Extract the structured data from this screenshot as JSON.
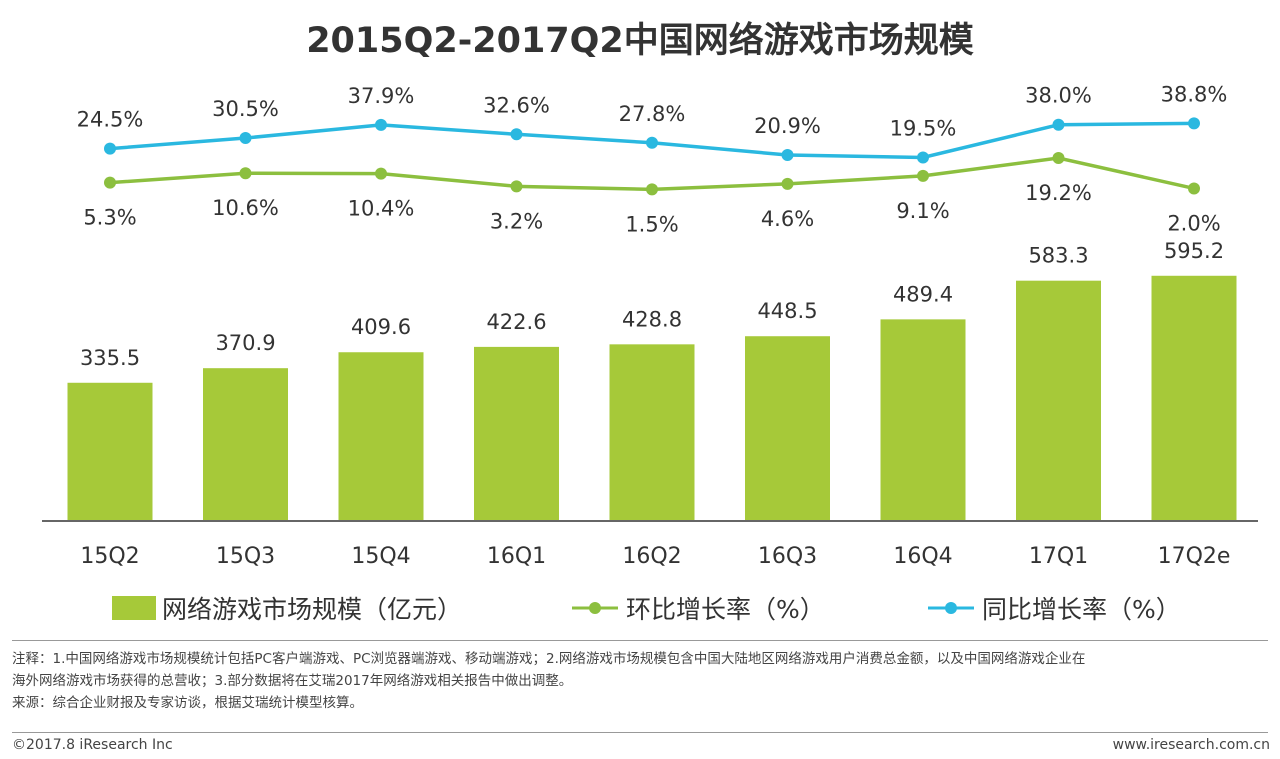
{
  "colors": {
    "bar": "#a6c939",
    "qoq_line": "#8cbf3f",
    "yoy_line": "#2ab8e0",
    "axis": "#666666",
    "text": "#333333"
  },
  "chart_data": {
    "type": "bar",
    "title": "2015Q2-2017Q2中国网络游戏市场规模",
    "categories": [
      "15Q2",
      "15Q3",
      "15Q4",
      "16Q1",
      "16Q2",
      "16Q3",
      "16Q4",
      "17Q1",
      "17Q2e"
    ],
    "series": [
      {
        "name": "网络游戏市场规模（亿元）",
        "kind": "bar",
        "values": [
          335.5,
          370.9,
          409.6,
          422.6,
          428.8,
          448.5,
          489.4,
          583.3,
          595.2
        ],
        "labels": [
          "335.5",
          "370.9",
          "409.6",
          "422.6",
          "428.8",
          "448.5",
          "489.4",
          "583.3",
          "595.2"
        ]
      },
      {
        "name": "环比增长率（%）",
        "kind": "line",
        "values": [
          5.3,
          10.6,
          10.4,
          3.2,
          1.5,
          4.6,
          9.1,
          19.2,
          2.0
        ],
        "labels": [
          "5.3%",
          "10.6%",
          "10.4%",
          "3.2%",
          "1.5%",
          "4.6%",
          "9.1%",
          "19.2%",
          "2.0%"
        ]
      },
      {
        "name": "同比增长率（%）",
        "kind": "line",
        "values": [
          24.5,
          30.5,
          37.9,
          32.6,
          27.8,
          20.9,
          19.5,
          38.0,
          38.8
        ],
        "labels": [
          "24.5%",
          "30.5%",
          "37.9%",
          "32.6%",
          "27.8%",
          "20.9%",
          "19.5%",
          "38.0%",
          "38.8%"
        ]
      }
    ],
    "bar_ylim": [
      0,
      600
    ],
    "legend_position": "bottom"
  },
  "legend": {
    "bar": "网络游戏市场规模（亿元）",
    "qoq": "环比增长率（%）",
    "yoy": "同比增长率（%）"
  },
  "notes": {
    "line1": "注释：1.中国网络游戏市场规模统计包括PC客户端游戏、PC浏览器端游戏、移动端游戏；2.网络游戏市场规模包含中国大陆地区网络游戏用户消费总金额，以及中国网络游戏企业在",
    "line2": "海外网络游戏市场获得的总营收；3.部分数据将在艾瑞2017年网络游戏相关报告中做出调整。",
    "source": "来源：综合企业财报及专家访谈，根据艾瑞统计模型核算。"
  },
  "footer": {
    "copyright": "©2017.8 iResearch Inc",
    "website": "www.iresearch.com.cn"
  }
}
